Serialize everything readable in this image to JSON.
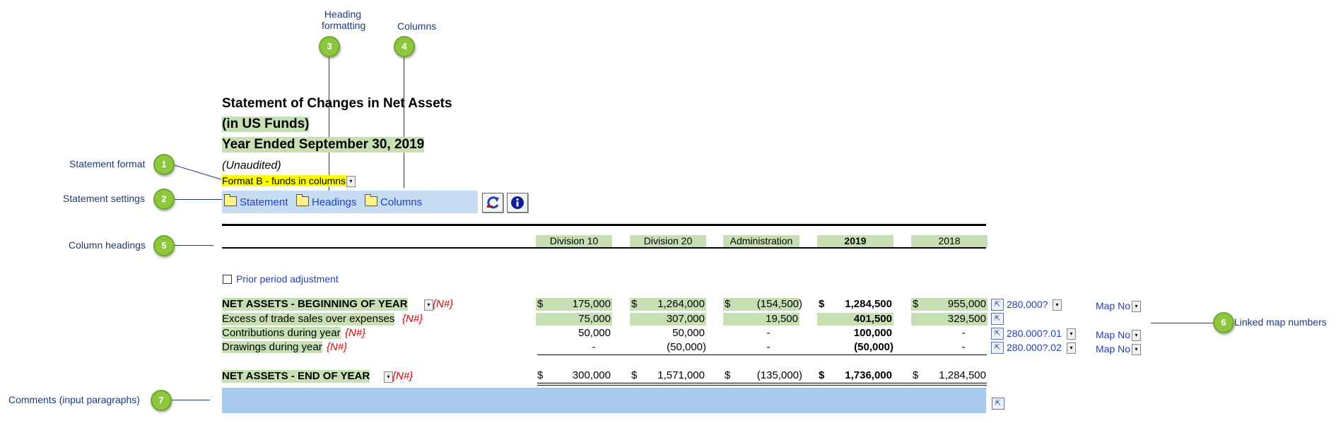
{
  "callouts": {
    "heading_formatting": {
      "line1": "Heading",
      "line2": "formatting",
      "num": "3"
    },
    "columns": {
      "label": "Columns",
      "num": "4"
    },
    "statement_format": {
      "label": "Statement format",
      "num": "1"
    },
    "statement_settings": {
      "label": "Statement settings",
      "num": "2"
    },
    "column_headings": {
      "label": "Column headings",
      "num": "5"
    },
    "linked_map_numbers": {
      "label": "Linked map numbers",
      "num": "6"
    },
    "comments": {
      "label": "Comments (input paragraphs)",
      "num": "7"
    }
  },
  "statement": {
    "title": "Statement of Changes in Net Assets",
    "subtitle": "(in US Funds)",
    "period": "Year Ended September 30, 2019",
    "audit_status": "(Unaudited)",
    "format_value": "Format B - funds in columns"
  },
  "settings": {
    "statement_label": "Statement",
    "headings_label": "Headings",
    "columns_label": "Columns",
    "refresh_icon": "refresh-icon",
    "info_icon": "info-icon"
  },
  "columns": [
    "Division 10",
    "Division 20",
    "Administration",
    "2019",
    "2018"
  ],
  "prior_period_label": "Prior period adjustment",
  "tag": "{N#}",
  "dollar": "$",
  "map_label": "Map No",
  "rows": {
    "beginning": {
      "label": "NET ASSETS - BEGINNING OF YEAR",
      "values": [
        "175,000",
        "1,264,000",
        "(154,500)",
        "1,284,500",
        "955,000"
      ],
      "map": "280.000?"
    },
    "excess": {
      "label": "Excess of trade sales over expenses",
      "values": [
        "75,000",
        "307,000",
        "19,500",
        "401,500",
        "329,500"
      ]
    },
    "contributions": {
      "label": "Contributions during year",
      "values": [
        "50,000",
        "50,000",
        "-",
        "100,000",
        "-"
      ],
      "map": "280.000?.01"
    },
    "drawings": {
      "label": "Drawings during year",
      "values": [
        "-",
        "(50,000)",
        "-",
        "(50,000)",
        "-"
      ],
      "map": "280.000?.02"
    },
    "ending": {
      "label": "NET ASSETS - END OF YEAR",
      "values": [
        "300,000",
        "1,571,000",
        "(135,000)",
        "1,736,000",
        "1,284,500"
      ]
    }
  }
}
